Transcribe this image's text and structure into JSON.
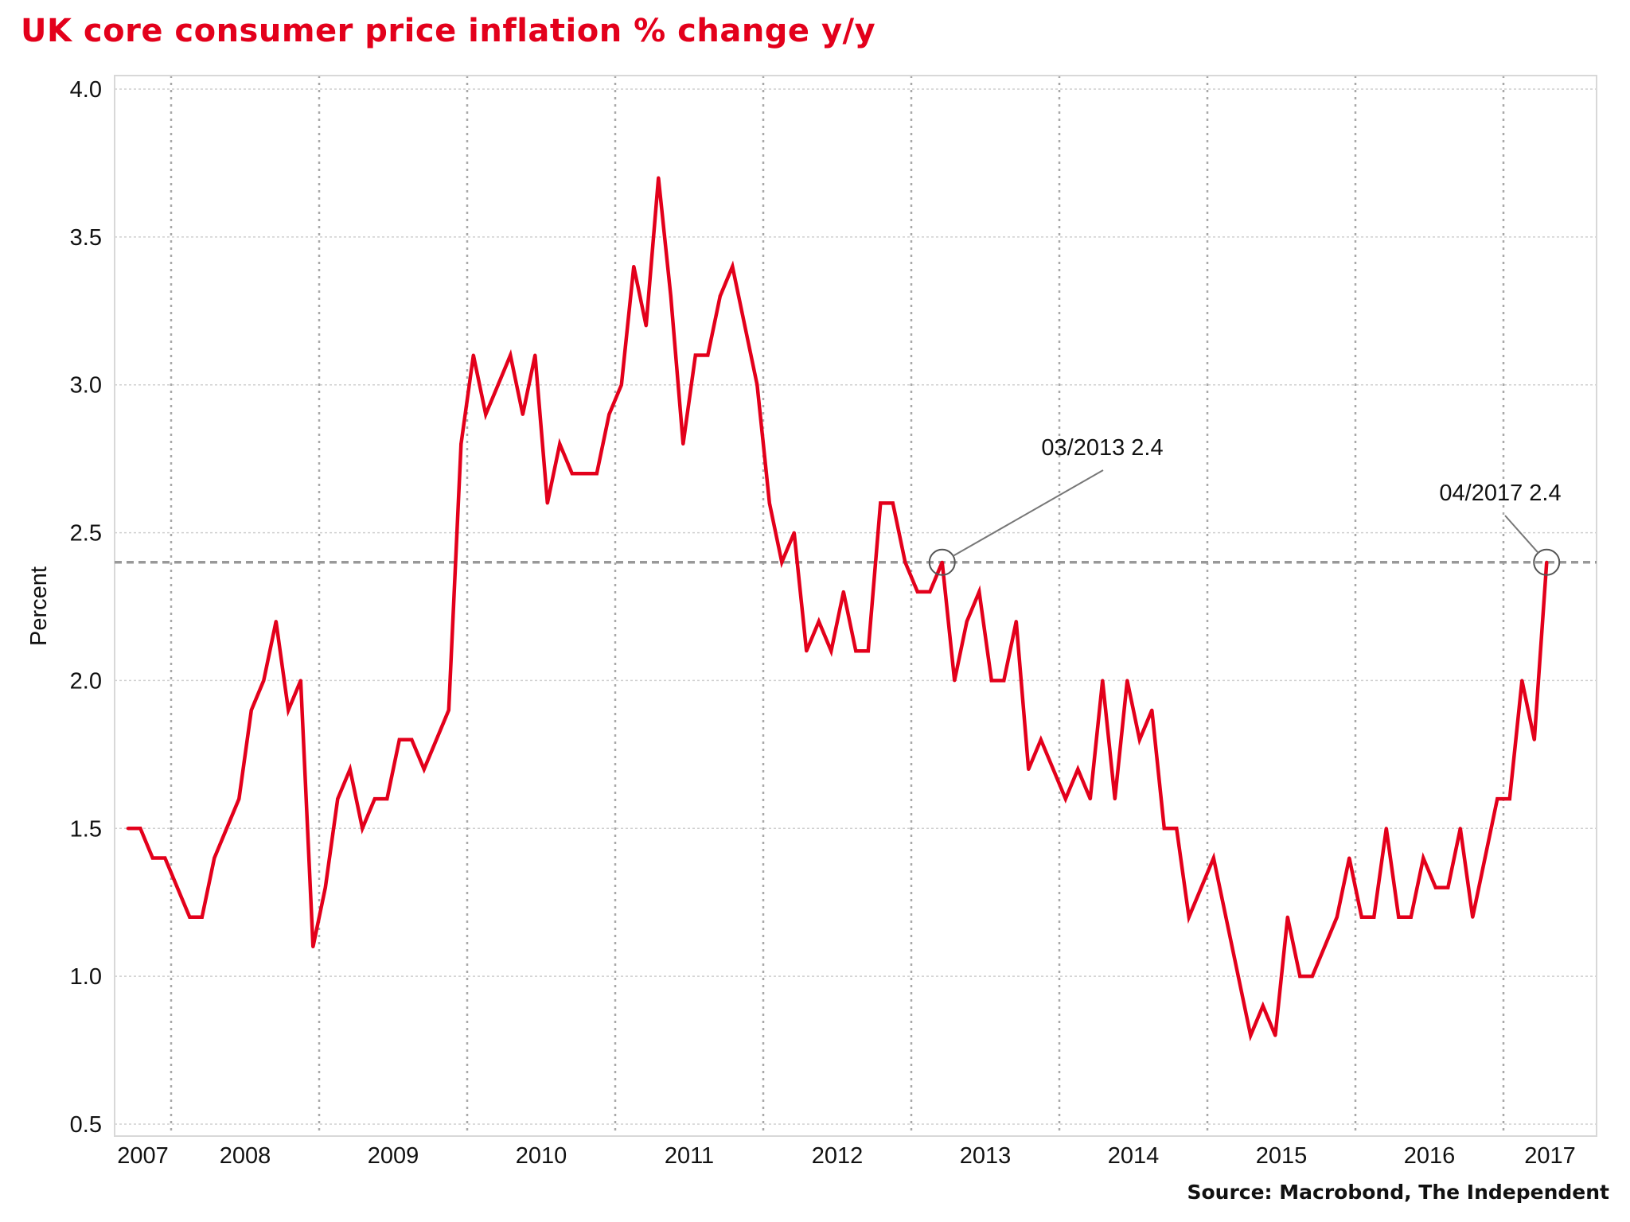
{
  "chart_data": {
    "type": "line",
    "title": "UK core consumer price inflation % change y/y",
    "ylabel": "Percent",
    "xlabel": "",
    "source": "Source: Macrobond, The Independent",
    "ylim": [
      0.5,
      4.0
    ],
    "yticks": [
      "4.0",
      "3.5",
      "3.0",
      "2.5",
      "2.0",
      "1.5",
      "1.0",
      "0.5"
    ],
    "xticks": [
      "2007",
      "2008",
      "2009",
      "2010",
      "2011",
      "2012",
      "2013",
      "2014",
      "2015",
      "2016",
      "2017"
    ],
    "grid": true,
    "line_color": "#e3001b",
    "reference_line": {
      "y": 2.4,
      "style": "dashed",
      "color": "#999999"
    },
    "annotations": [
      {
        "x": "2013-03",
        "y": 2.4,
        "label": "03/2013 2.4"
      },
      {
        "x": "2017-04",
        "y": 2.4,
        "label": "04/2017 2.4"
      }
    ],
    "x": [
      "2007-09",
      "2007-10",
      "2007-11",
      "2007-12",
      "2008-01",
      "2008-02",
      "2008-03",
      "2008-04",
      "2008-05",
      "2008-06",
      "2008-07",
      "2008-08",
      "2008-09",
      "2008-10",
      "2008-11",
      "2008-12",
      "2009-01",
      "2009-02",
      "2009-03",
      "2009-04",
      "2009-05",
      "2009-06",
      "2009-07",
      "2009-08",
      "2009-09",
      "2009-10",
      "2009-11",
      "2009-12",
      "2010-01",
      "2010-02",
      "2010-03",
      "2010-04",
      "2010-05",
      "2010-06",
      "2010-07",
      "2010-08",
      "2010-09",
      "2010-10",
      "2010-11",
      "2010-12",
      "2011-01",
      "2011-02",
      "2011-03",
      "2011-04",
      "2011-05",
      "2011-06",
      "2011-07",
      "2011-08",
      "2011-09",
      "2011-10",
      "2011-11",
      "2011-12",
      "2012-01",
      "2012-02",
      "2012-03",
      "2012-04",
      "2012-05",
      "2012-06",
      "2012-07",
      "2012-08",
      "2012-09",
      "2012-10",
      "2012-11",
      "2012-12",
      "2013-01",
      "2013-02",
      "2013-03",
      "2013-04",
      "2013-05",
      "2013-06",
      "2013-07",
      "2013-08",
      "2013-09",
      "2013-10",
      "2013-11",
      "2013-12",
      "2014-01",
      "2014-02",
      "2014-03",
      "2014-04",
      "2014-05",
      "2014-06",
      "2014-07",
      "2014-08",
      "2014-09",
      "2014-10",
      "2014-11",
      "2014-12",
      "2015-01",
      "2015-02",
      "2015-03",
      "2015-04",
      "2015-05",
      "2015-06",
      "2015-07",
      "2015-08",
      "2015-09",
      "2015-10",
      "2015-11",
      "2015-12",
      "2016-01",
      "2016-02",
      "2016-03",
      "2016-04",
      "2016-05",
      "2016-06",
      "2016-07",
      "2016-08",
      "2016-09",
      "2016-10",
      "2016-11",
      "2016-12",
      "2017-01",
      "2017-02",
      "2017-03",
      "2017-04"
    ],
    "series": [
      {
        "values": [
          1.5,
          1.5,
          1.4,
          1.4,
          1.3,
          1.2,
          1.2,
          1.4,
          1.5,
          1.6,
          1.9,
          2.0,
          2.2,
          1.9,
          2.0,
          1.1,
          1.3,
          1.6,
          1.7,
          1.5,
          1.6,
          1.6,
          1.8,
          1.8,
          1.7,
          1.8,
          1.9,
          2.8,
          3.1,
          2.9,
          3.0,
          3.1,
          2.9,
          3.1,
          2.6,
          2.8,
          2.7,
          2.7,
          2.7,
          2.9,
          3.0,
          3.4,
          3.2,
          3.7,
          3.3,
          2.8,
          3.1,
          3.1,
          3.3,
          3.4,
          3.2,
          3.0,
          2.6,
          2.4,
          2.5,
          2.1,
          2.2,
          2.1,
          2.3,
          2.1,
          2.1,
          2.6,
          2.6,
          2.4,
          2.3,
          2.3,
          2.4,
          2.0,
          2.2,
          2.3,
          2.0,
          2.0,
          2.2,
          1.7,
          1.8,
          1.7,
          1.6,
          1.7,
          1.6,
          2.0,
          1.6,
          2.0,
          1.8,
          1.9,
          1.5,
          1.5,
          1.2,
          1.3,
          1.4,
          1.2,
          1.0,
          0.8,
          0.9,
          0.8,
          1.2,
          1.0,
          1.0,
          1.1,
          1.2,
          1.4,
          1.2,
          1.2,
          1.5,
          1.2,
          1.2,
          1.4,
          1.3,
          1.3,
          1.5,
          1.2,
          1.4,
          1.6,
          1.6,
          2.0,
          1.8,
          2.4
        ]
      }
    ]
  }
}
